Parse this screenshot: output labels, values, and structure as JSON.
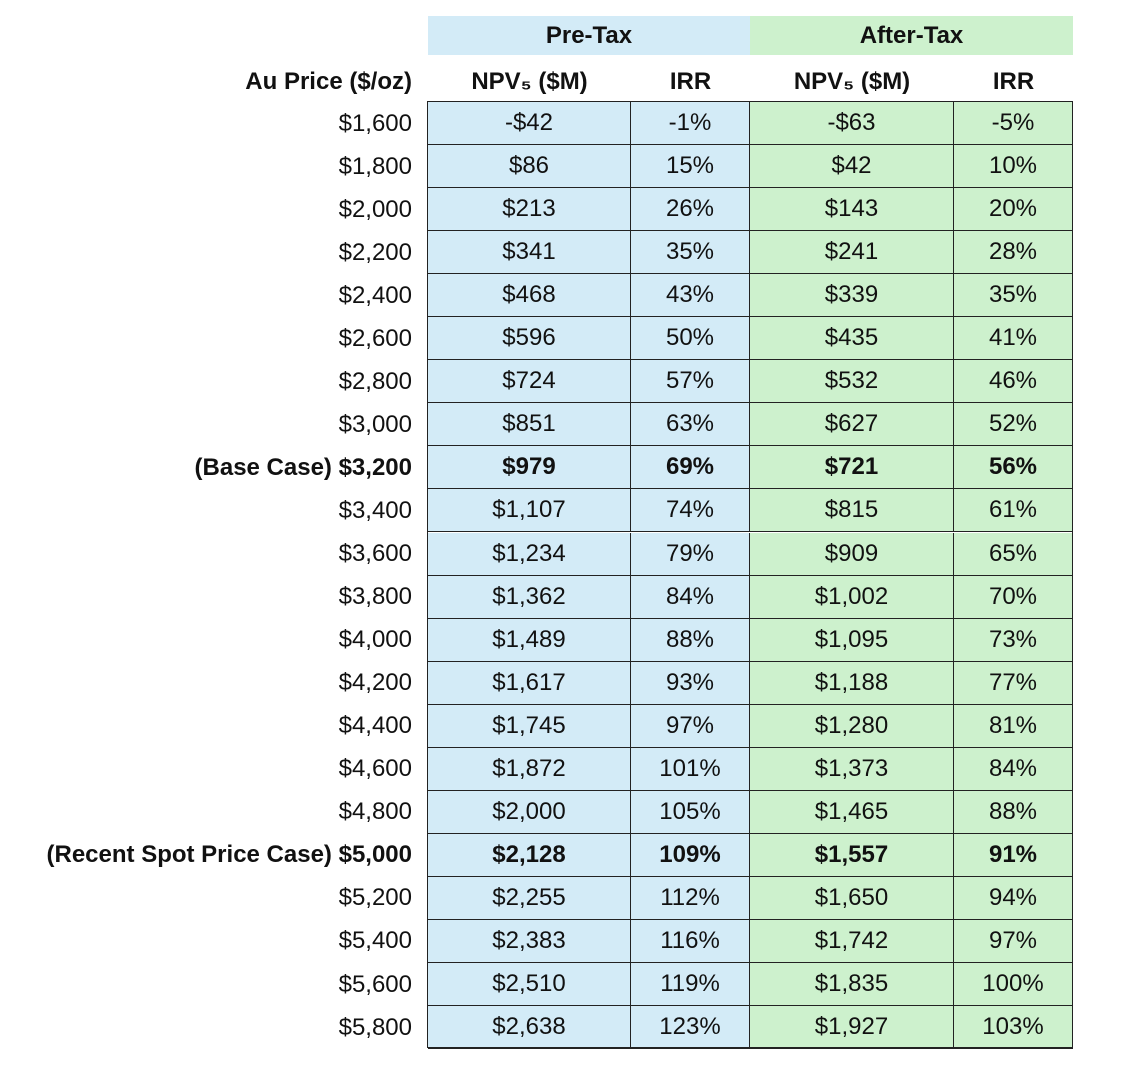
{
  "header": {
    "groups": [
      "Pre-Tax",
      "After-Tax"
    ],
    "columns": [
      "Au Price ($/oz)",
      "NPV₅ ($M)",
      "IRR",
      "NPV₅ ($M)",
      "IRR"
    ]
  },
  "table": {
    "rows": [
      [
        "$1,600",
        "-$42",
        "-1%",
        "-$63",
        "-5%"
      ],
      [
        "$1,800",
        "$86",
        "15%",
        "$42",
        "10%"
      ],
      [
        "$2,000",
        "$213",
        "26%",
        "$143",
        "20%"
      ],
      [
        "$2,200",
        "$341",
        "35%",
        "$241",
        "28%"
      ],
      [
        "$2,400",
        "$468",
        "43%",
        "$339",
        "35%"
      ],
      [
        "$2,600",
        "$596",
        "50%",
        "$435",
        "41%"
      ],
      [
        "$2,800",
        "$724",
        "57%",
        "$532",
        "46%"
      ],
      [
        "$3,000",
        "$851",
        "63%",
        "$627",
        "52%"
      ],
      [
        "(Base Case) $3,200",
        "$979",
        "69%",
        "$721",
        "56%"
      ],
      [
        "$3,400",
        "$1,107",
        "74%",
        "$815",
        "61%"
      ],
      [
        "$3,600",
        "$1,234",
        "79%",
        "$909",
        "65%"
      ],
      [
        "$3,800",
        "$1,362",
        "84%",
        "$1,002",
        "70%"
      ],
      [
        "$4,000",
        "$1,489",
        "88%",
        "$1,095",
        "73%"
      ],
      [
        "$4,200",
        "$1,617",
        "93%",
        "$1,188",
        "77%"
      ],
      [
        "$4,400",
        "$1,745",
        "97%",
        "$1,280",
        "81%"
      ],
      [
        "$4,600",
        "$1,872",
        "101%",
        "$1,373",
        "84%"
      ],
      [
        "$4,800",
        "$2,000",
        "105%",
        "$1,465",
        "88%"
      ],
      [
        "(Recent Spot Price Case) $5,000",
        "$2,128",
        "109%",
        "$1,557",
        "91%"
      ],
      [
        "$5,200",
        "$2,255",
        "112%",
        "$1,650",
        "94%"
      ],
      [
        "$5,400",
        "$2,383",
        "116%",
        "$1,742",
        "97%"
      ],
      [
        "$5,600",
        "$2,510",
        "119%",
        "$1,835",
        "100%"
      ],
      [
        "$5,800",
        "$2,638",
        "123%",
        "$1,927",
        "103%"
      ]
    ]
  }
}
